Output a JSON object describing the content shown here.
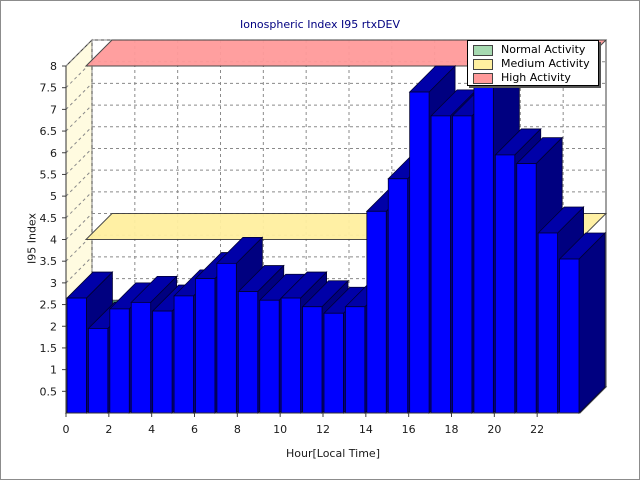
{
  "chart_data": {
    "type": "bar",
    "title": "Ionospheric Index I95 rtxDEV",
    "xlabel": "Hour[Local Time]",
    "ylabel": "I95 Index",
    "xlim": [
      0,
      24
    ],
    "ylim": [
      0,
      8
    ],
    "x_ticks": [
      "0",
      "2",
      "4",
      "6",
      "8",
      "10",
      "12",
      "14",
      "16",
      "18",
      "20",
      "22"
    ],
    "y_ticks": [
      "0.5",
      "1",
      "1.5",
      "2",
      "2.5",
      "3",
      "3.5",
      "4",
      "4.5",
      "5",
      "5.5",
      "6",
      "6.5",
      "7",
      "7.5",
      "8"
    ],
    "grid": true,
    "legend_position": "top-right",
    "categories": [
      "0",
      "1",
      "2",
      "3",
      "4",
      "5",
      "6",
      "7",
      "8",
      "9",
      "10",
      "11",
      "12",
      "13",
      "14",
      "15",
      "16",
      "17",
      "18",
      "19",
      "20",
      "21",
      "22",
      "23"
    ],
    "values": [
      2.65,
      1.95,
      2.4,
      2.55,
      2.35,
      2.7,
      3.1,
      3.45,
      2.8,
      2.6,
      2.65,
      2.45,
      2.3,
      2.45,
      4.65,
      5.4,
      7.4,
      6.85,
      6.85,
      7.65,
      5.95,
      5.75,
      4.15,
      3.55
    ],
    "bar_color": "#0000ff",
    "bands": [
      {
        "name": "Normal Activity",
        "value": 2,
        "color": "#a6d9b0"
      },
      {
        "name": "Medium Activity",
        "value": 4,
        "color": "#fff0a0"
      },
      {
        "name": "High Activity",
        "value": 8,
        "color": "#ff9a9a"
      }
    ]
  }
}
